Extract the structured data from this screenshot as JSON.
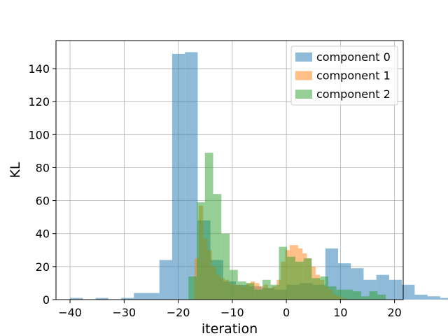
{
  "chart_data": {
    "type": "histogram",
    "xlabel": "iteration",
    "ylabel": "KL",
    "xlim": [
      -42.6,
      21.6
    ],
    "ylim": [
      0,
      157
    ],
    "xticks": [
      -40,
      -30,
      -20,
      -10,
      0,
      10,
      20
    ],
    "yticks": [
      0,
      20,
      40,
      60,
      80,
      100,
      120,
      140
    ],
    "grid": true,
    "legend_position": "top-right",
    "series": [
      {
        "name": "component 0",
        "color": "#1f77b4",
        "alpha": 0.5,
        "bin_start": -40.0,
        "bin_width": 2.36,
        "counts": [
          1,
          0,
          1,
          0,
          1,
          4,
          4,
          24,
          149,
          150,
          48,
          24,
          11,
          9,
          8,
          7,
          6,
          9,
          10,
          9,
          31,
          22,
          19,
          12,
          15,
          12,
          9,
          3,
          2,
          1
        ]
      },
      {
        "name": "component 1",
        "color": "#ff7f0e",
        "alpha": 0.5,
        "bin_start": -17.0,
        "bin_width": 0.8,
        "counts": [
          25,
          57,
          37,
          30,
          20,
          15,
          13,
          12,
          10,
          9,
          9,
          8,
          10,
          11,
          10,
          8,
          9,
          7,
          8,
          12,
          23,
          30,
          33,
          33,
          31,
          28,
          25,
          20,
          15,
          12,
          8,
          6,
          3,
          2,
          1
        ]
      },
      {
        "name": "component 2",
        "color": "#2ca02c",
        "alpha": 0.5,
        "bin_start": -18.1,
        "bin_width": 1.52,
        "counts": [
          14,
          59,
          89,
          64,
          40,
          18,
          11,
          10,
          6,
          12,
          9,
          32,
          26,
          23,
          25,
          13,
          14,
          8,
          6,
          6,
          5,
          2,
          5,
          3
        ]
      }
    ]
  }
}
